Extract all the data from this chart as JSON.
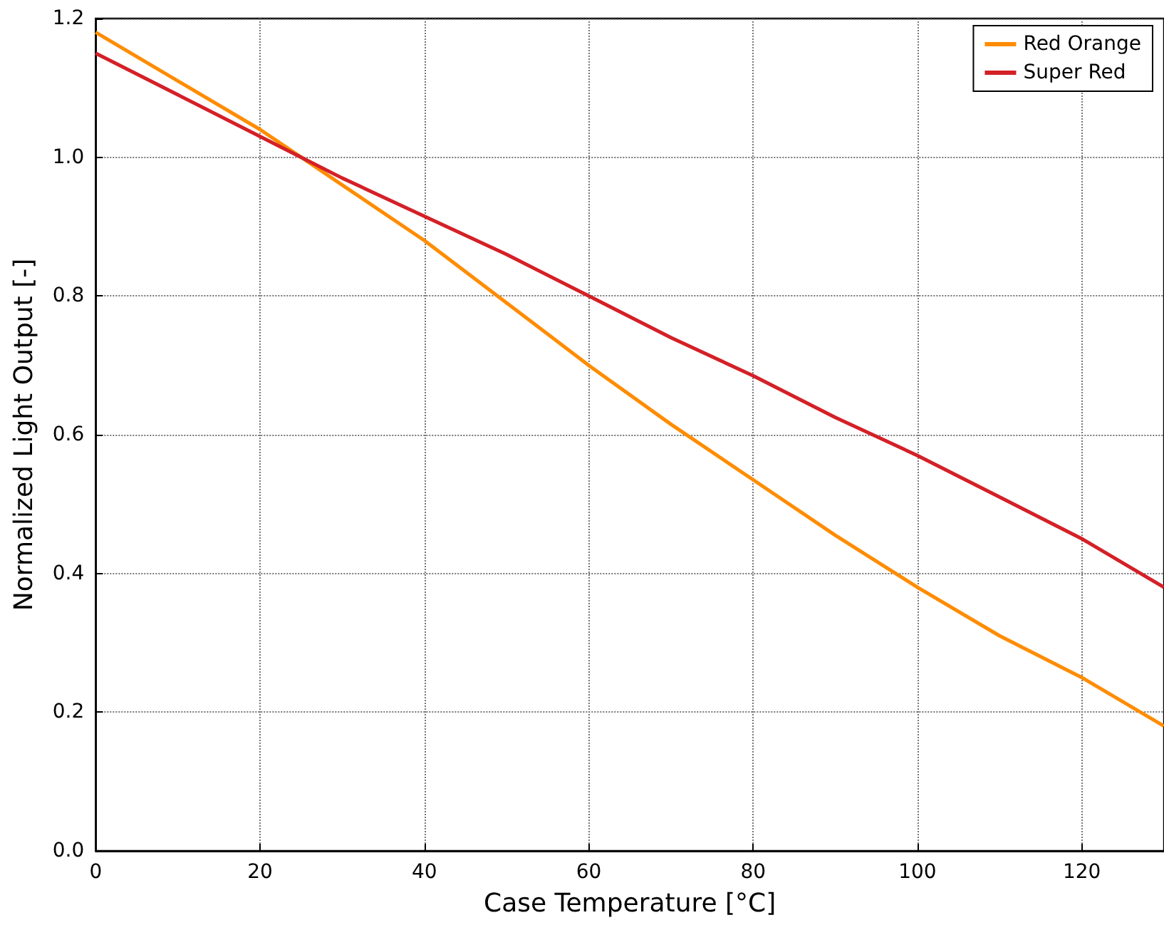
{
  "chart_data": {
    "type": "line",
    "xlabel": "Case Temperature [°C]",
    "ylabel": "Normalized Light Output [-]",
    "x": [
      0,
      10,
      20,
      25,
      30,
      40,
      50,
      60,
      70,
      80,
      90,
      100,
      110,
      120,
      130
    ],
    "series": [
      {
        "name": "Red Orange",
        "color": "#ff8c00",
        "values": [
          1.18,
          1.11,
          1.04,
          1.0,
          0.96,
          0.88,
          0.79,
          0.7,
          0.615,
          0.535,
          0.455,
          0.38,
          0.31,
          0.25,
          0.18
        ]
      },
      {
        "name": "Super Red",
        "color": "#d42027",
        "values": [
          1.15,
          1.09,
          1.03,
          1.0,
          0.97,
          0.915,
          0.86,
          0.8,
          0.74,
          0.685,
          0.625,
          0.57,
          0.51,
          0.45,
          0.38
        ]
      }
    ],
    "xlim": [
      0,
      130
    ],
    "ylim": [
      0,
      1.2
    ],
    "xticks": [
      0,
      20,
      40,
      60,
      80,
      100,
      120
    ],
    "yticks": [
      {
        "value": 0,
        "label": "0.0"
      },
      0.2,
      0.4,
      0.6,
      0.8,
      {
        "value": 1,
        "label": "1.0"
      },
      1.2
    ],
    "grid": true,
    "legend": "top right",
    "marker": "none",
    "line_style": "solid"
  }
}
